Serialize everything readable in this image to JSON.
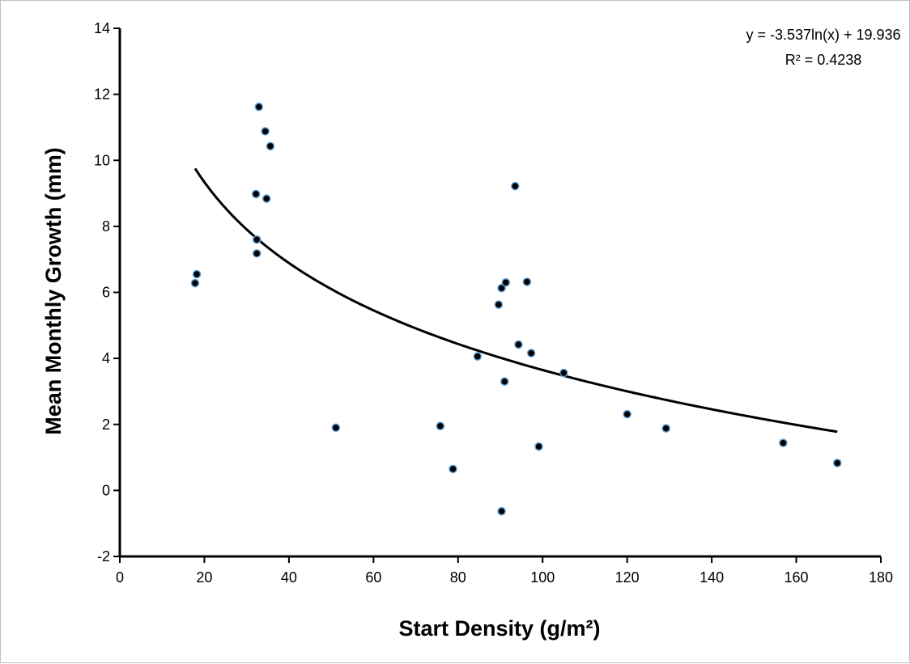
{
  "chart_data": {
    "type": "scatter",
    "title": "",
    "xlabel": "Start Density (g/m²)",
    "ylabel": "Mean Monthly Growth (mm)",
    "xlim": [
      0,
      180
    ],
    "ylim": [
      -2,
      14
    ],
    "xticks": [
      0,
      20,
      40,
      60,
      80,
      100,
      120,
      140,
      160,
      180
    ],
    "yticks": [
      -2,
      0,
      2,
      4,
      6,
      8,
      10,
      12,
      14
    ],
    "grid": false,
    "legend": "none",
    "points": [
      {
        "x": 17.8,
        "y": 6.28
      },
      {
        "x": 18.2,
        "y": 6.55
      },
      {
        "x": 32.2,
        "y": 8.98
      },
      {
        "x": 32.4,
        "y": 7.6
      },
      {
        "x": 32.4,
        "y": 7.18
      },
      {
        "x": 32.9,
        "y": 11.62
      },
      {
        "x": 34.4,
        "y": 10.88
      },
      {
        "x": 34.7,
        "y": 8.84
      },
      {
        "x": 35.6,
        "y": 10.43
      },
      {
        "x": 51.1,
        "y": 1.9
      },
      {
        "x": 75.8,
        "y": 1.95
      },
      {
        "x": 78.8,
        "y": 0.65
      },
      {
        "x": 84.6,
        "y": 4.06
      },
      {
        "x": 89.6,
        "y": 5.63
      },
      {
        "x": 90.3,
        "y": 6.13
      },
      {
        "x": 90.3,
        "y": -0.63
      },
      {
        "x": 91.0,
        "y": 3.3
      },
      {
        "x": 91.3,
        "y": 6.3
      },
      {
        "x": 93.5,
        "y": 9.22
      },
      {
        "x": 94.3,
        "y": 4.42
      },
      {
        "x": 96.3,
        "y": 6.32
      },
      {
        "x": 97.3,
        "y": 4.16
      },
      {
        "x": 99.1,
        "y": 1.33
      },
      {
        "x": 105.0,
        "y": 3.56
      },
      {
        "x": 120.0,
        "y": 2.31
      },
      {
        "x": 129.2,
        "y": 1.88
      },
      {
        "x": 156.9,
        "y": 1.44
      },
      {
        "x": 169.7,
        "y": 0.83
      }
    ],
    "trendline": {
      "type": "logarithmic",
      "a": -3.537,
      "b": 19.936,
      "x_range": [
        17.8,
        169.7
      ],
      "equation": "y = -3.537ln(x) + 19.936",
      "r_squared": "R² = 0.4238"
    },
    "colors": {
      "marker_fill": "#000000",
      "marker_stroke": "#5b9bd5",
      "trendline": "#000000",
      "axis": "#000000"
    }
  }
}
